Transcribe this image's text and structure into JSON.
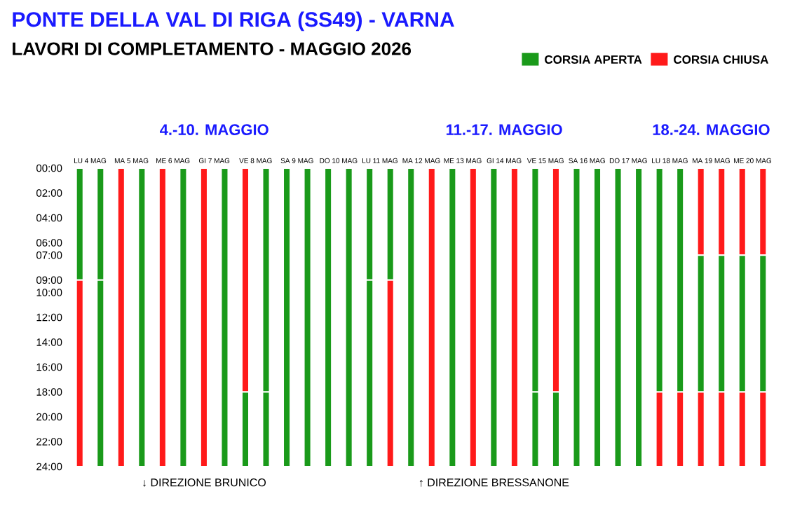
{
  "chart_data": {
    "type": "bar",
    "stacked": true,
    "title": "PONTE DELLA VAL DI RIGA (SS49) - VARNA",
    "subtitle": "LAVORI DI COMPLETAMENTO - MAGGIO 2026",
    "categories": [
      "LU 4 MAG",
      null,
      "MA 5 MAG",
      null,
      "ME 6 MAG",
      null,
      "GI 7 MAG",
      null,
      "VE 8 MAG",
      null,
      "SA 9 MAG",
      null,
      "DO 10 MAG",
      null,
      "LU 11 MAG",
      null,
      "MA 12 MAG",
      null,
      "ME 13 MAG",
      null,
      "GI 14 MAG",
      null,
      "VE 15 MAG",
      null,
      "SA 16 MAG",
      null,
      "DO 17 MAG",
      null,
      "LU 18 MAG",
      null,
      "MA 19 MAG",
      null,
      "ME 20 MAG",
      null
    ],
    "series": [
      {
        "values": [
          9,
          9,
          24,
          24,
          24,
          24,
          24,
          24,
          18,
          18,
          24,
          24,
          24,
          24,
          9,
          9,
          24,
          24,
          24,
          24,
          24,
          24,
          18,
          18,
          24,
          24,
          24,
          24,
          18,
          18,
          7,
          7,
          7,
          7
        ],
        "colors": [
          "#1a9a1a",
          "#1a9a1a",
          "#ff1a1a",
          "#1a9a1a",
          "#ff1a1a",
          "#1a9a1a",
          "#ff1a1a",
          "#1a9a1a",
          "#ff1a1a",
          "#1a9a1a",
          "#1a9a1a",
          "#1a9a1a",
          "#1a9a1a",
          "#1a9a1a",
          "#1a9a1a",
          "#1a9a1a",
          "#1a9a1a",
          "#ff1a1a",
          "#1a9a1a",
          "#ff1a1a",
          "#1a9a1a",
          "#ff1a1a",
          "#1a9a1a",
          "#ff1a1a",
          "#1a9a1a",
          "#1a9a1a",
          "#1a9a1a",
          "#1a9a1a",
          "#1a9a1a",
          "#1a9a1a",
          "#ff1a1a",
          "#ff1a1a",
          "#ff1a1a",
          "#ff1a1a"
        ]
      },
      {
        "values": [
          15,
          15,
          null,
          null,
          null,
          null,
          null,
          null,
          6,
          6,
          null,
          null,
          null,
          null,
          15,
          15,
          null,
          null,
          null,
          null,
          null,
          null,
          6,
          6,
          null,
          null,
          null,
          null,
          6,
          6,
          11,
          11,
          11,
          11
        ],
        "colors": [
          "#ff1a1a",
          "#1a9a1a",
          null,
          null,
          null,
          null,
          null,
          null,
          "#1a9a1a",
          "#1a9a1a",
          null,
          null,
          null,
          null,
          "#1a9a1a",
          "#ff1a1a",
          null,
          null,
          null,
          null,
          null,
          null,
          "#1a9a1a",
          "#1a9a1a",
          null,
          null,
          null,
          null,
          "#ff1a1a",
          "#ff1a1a",
          "#1a9a1a",
          "#1a9a1a",
          "#1a9a1a",
          "#1a9a1a"
        ]
      },
      {
        "values": [
          null,
          null,
          null,
          null,
          null,
          null,
          null,
          null,
          null,
          null,
          null,
          null,
          null,
          null,
          null,
          null,
          null,
          null,
          null,
          null,
          null,
          null,
          null,
          null,
          null,
          null,
          null,
          null,
          null,
          null,
          6,
          6,
          6,
          6
        ],
        "colors": [
          null,
          null,
          null,
          null,
          null,
          null,
          null,
          null,
          null,
          null,
          null,
          null,
          null,
          null,
          null,
          null,
          null,
          null,
          null,
          null,
          null,
          null,
          null,
          null,
          null,
          null,
          null,
          null,
          null,
          null,
          "#ff1a1a",
          "#ff1a1a",
          "#ff1a1a",
          "#ff1a1a"
        ]
      }
    ],
    "ylim": [
      24,
      0
    ],
    "yticks": [
      {
        "value": 0,
        "label": "00:00"
      },
      {
        "value": 2,
        "label": "02:00"
      },
      {
        "value": 4,
        "label": "04:00"
      },
      {
        "value": 6,
        "label": "06:00"
      },
      {
        "value": 7,
        "label": "07:00"
      },
      {
        "value": 9,
        "label": "09:00"
      },
      {
        "value": 10,
        "label": "10:00"
      },
      {
        "value": 12,
        "label": "12:00"
      },
      {
        "value": 14,
        "label": "14:00"
      },
      {
        "value": 16,
        "label": "16:00"
      },
      {
        "value": 18,
        "label": "18:00"
      },
      {
        "value": 20,
        "label": "20:00"
      },
      {
        "value": 22,
        "label": "22:00"
      },
      {
        "value": 24,
        "label": "24:00"
      }
    ],
    "annotations": [
      "4.-10. MAGGIO",
      "11.-17. MAGGIO",
      "18.-24. MAGGIO",
      "CORSIA APERTA",
      "CORSIA CHIUSA",
      "↓ DIREZIONE BRUNICO",
      "↑ DIREZIONE BRESSANONE"
    ]
  }
}
